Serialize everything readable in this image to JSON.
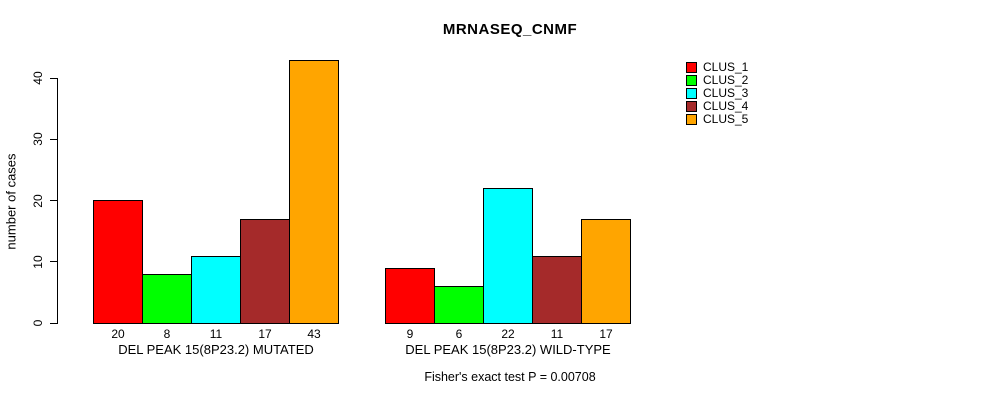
{
  "title": "MRNASEQ_CNMF",
  "y_axis": {
    "label": "number of cases",
    "ticks": [
      0,
      10,
      20,
      30,
      40
    ]
  },
  "legend": {
    "items": [
      {
        "label": "CLUS_1",
        "color": "#FF0000"
      },
      {
        "label": "CLUS_2",
        "color": "#00FF00"
      },
      {
        "label": "CLUS_3",
        "color": "#00FFFF"
      },
      {
        "label": "CLUS_4",
        "color": "#A52A2A"
      },
      {
        "label": "CLUS_5",
        "color": "#FFA500"
      }
    ]
  },
  "caption": "Fisher's exact test P = 0.00708",
  "chart_data": {
    "type": "bar",
    "title": "MRNASEQ_CNMF",
    "xlabel": "",
    "ylabel": "number of cases",
    "ylim": [
      0,
      43
    ],
    "yticks": [
      0,
      10,
      20,
      30,
      40
    ],
    "grid": false,
    "legend_position": "top-right",
    "bar_value_labels_shown": true,
    "series": [
      "CLUS_1",
      "CLUS_2",
      "CLUS_3",
      "CLUS_4",
      "CLUS_5"
    ],
    "series_colors": [
      "#FF0000",
      "#00FF00",
      "#00FFFF",
      "#A52A2A",
      "#FFA500"
    ],
    "groups": [
      {
        "label": "DEL PEAK 15(8P23.2) MUTATED",
        "values": [
          20,
          8,
          11,
          17,
          43
        ]
      },
      {
        "label": "DEL PEAK 15(8P23.2) WILD-TYPE",
        "values": [
          9,
          6,
          22,
          11,
          17
        ]
      }
    ],
    "annotation": "Fisher's exact test P = 0.00708"
  }
}
